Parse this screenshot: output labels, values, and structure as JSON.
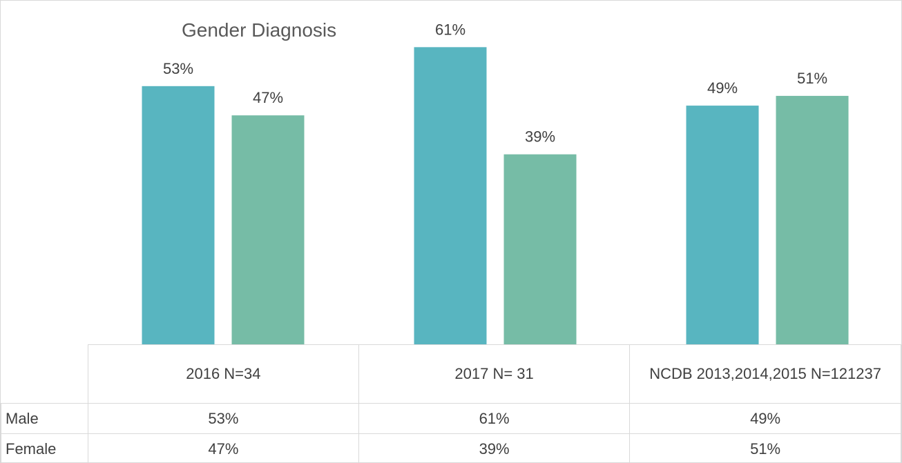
{
  "chart_data": {
    "type": "bar",
    "title": "Gender Diagnosis",
    "categories": [
      "2016 N=34",
      "2017 N= 31",
      "NCDB 2013,2014,2015 N=121237"
    ],
    "series": [
      {
        "name": "Male",
        "color": "#58b5c0",
        "values": [
          53,
          61,
          49
        ],
        "value_labels": [
          "53%",
          "61%",
          "49%"
        ]
      },
      {
        "name": "Female",
        "color": "#76bca6",
        "values": [
          47,
          39,
          51
        ],
        "value_labels": [
          "47%",
          "39%",
          "51%"
        ]
      }
    ]
  }
}
